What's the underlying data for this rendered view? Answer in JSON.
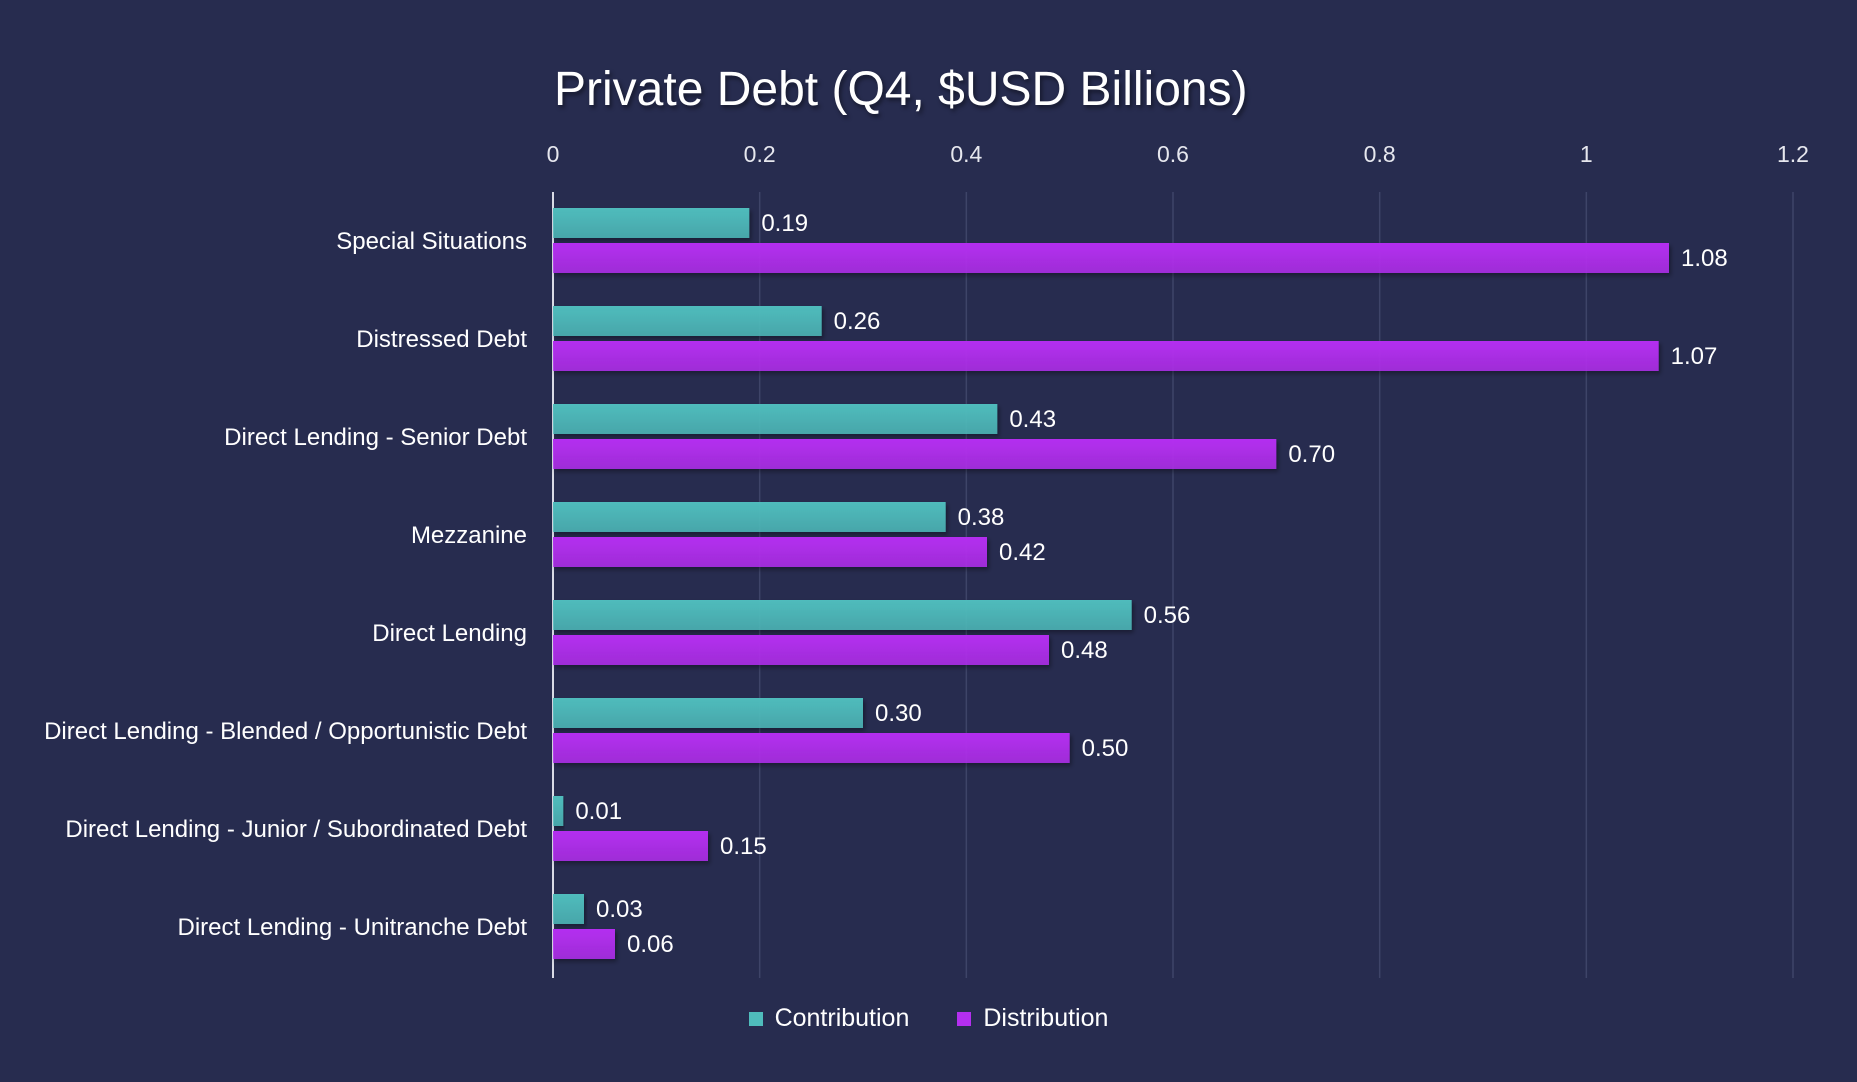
{
  "chart_data": {
    "type": "bar",
    "orientation": "horizontal",
    "title": "Private Debt (Q4, $USD Billions)",
    "categories": [
      "Special Situations",
      "Distressed Debt",
      "Direct Lending - Senior Debt",
      "Mezzanine",
      "Direct Lending",
      "Direct Lending - Blended / Opportunistic Debt",
      "Direct Lending - Junior / Subordinated Debt",
      "Direct Lending - Unitranche Debt"
    ],
    "series": [
      {
        "name": "Contribution",
        "color": "#4fbcbc",
        "values": [
          0.19,
          0.26,
          0.43,
          0.38,
          0.56,
          0.3,
          0.01,
          0.03
        ],
        "labels": [
          "0.19",
          "0.26",
          "0.43",
          "0.38",
          "0.56",
          "0.30",
          "0.01",
          "0.03"
        ]
      },
      {
        "name": "Distribution",
        "color": "#b42ff0",
        "values": [
          1.08,
          1.07,
          0.7,
          0.42,
          0.48,
          0.5,
          0.15,
          0.06
        ],
        "labels": [
          "1.08",
          "1.07",
          "0.70",
          "0.42",
          "0.48",
          "0.50",
          "0.15",
          "0.06"
        ]
      }
    ],
    "xlim": [
      0,
      1.2
    ],
    "xticks": [
      "0",
      "0.2",
      "0.4",
      "0.6",
      "0.8",
      "1",
      "1.2"
    ],
    "xaxis_position": "top",
    "grid": true,
    "legend_position": "bottom-center"
  }
}
